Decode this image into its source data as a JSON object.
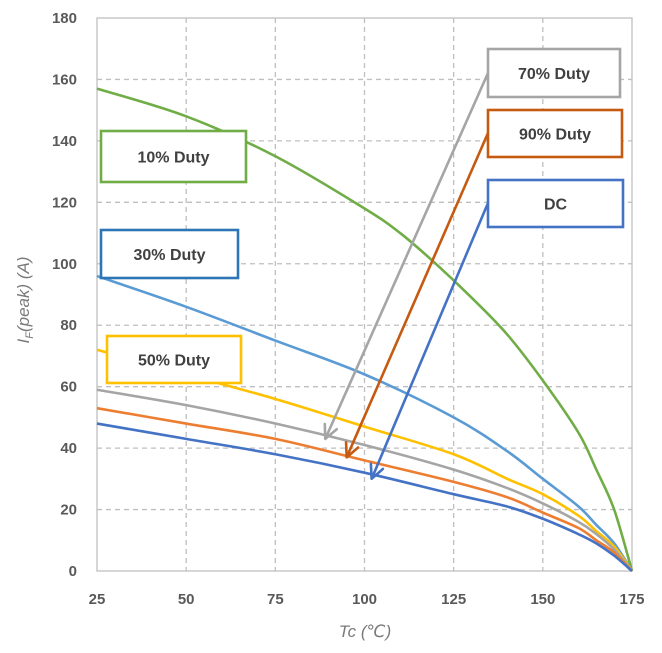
{
  "chart_data": {
    "type": "line",
    "xlabel": "Tc (℃)",
    "ylabel_main": "I",
    "ylabel_sub": "F",
    "ylabel_rest": "(peak) (A)",
    "xlim": [
      25,
      175
    ],
    "ylim": [
      0,
      180
    ],
    "xticks": [
      "25",
      "50",
      "75",
      "100",
      "125",
      "150",
      "175"
    ],
    "yticks": [
      "0",
      "20",
      "40",
      "60",
      "80",
      "100",
      "120",
      "140",
      "160",
      "180"
    ],
    "grid": true,
    "series": [
      {
        "name": "10% Duty",
        "color": "#70ad47",
        "x": [
          25,
          50,
          75,
          100,
          110,
          120,
          130,
          140,
          150,
          160,
          165,
          170,
          175
        ],
        "y": [
          157,
          148,
          135,
          118,
          110,
          100,
          89,
          77,
          62,
          45,
          33,
          20,
          0
        ]
      },
      {
        "name": "30% Duty",
        "color": "#5b9bd5",
        "x": [
          25,
          50,
          75,
          100,
          125,
          140,
          150,
          160,
          165,
          170,
          175
        ],
        "y": [
          96,
          86,
          75,
          64,
          50,
          39,
          30,
          21,
          15,
          9,
          0
        ]
      },
      {
        "name": "50% Duty",
        "color": "#ffc000",
        "x": [
          25,
          50,
          75,
          100,
          125,
          140,
          150,
          160,
          165,
          170,
          175
        ],
        "y": [
          72,
          64,
          56,
          47,
          38,
          30,
          25,
          18,
          13,
          8,
          0
        ]
      },
      {
        "name": "70% Duty",
        "color": "#a5a5a5",
        "x": [
          25,
          50,
          75,
          100,
          125,
          140,
          150,
          160,
          165,
          170,
          175
        ],
        "y": [
          59,
          54,
          48,
          41,
          33,
          27,
          22,
          16,
          12,
          7,
          0
        ]
      },
      {
        "name": "90% Duty",
        "color": "#ed7d31",
        "x": [
          25,
          50,
          75,
          100,
          125,
          140,
          150,
          160,
          165,
          170,
          175
        ],
        "y": [
          53,
          48,
          43,
          36,
          29,
          24,
          19,
          14,
          10,
          6,
          0
        ]
      },
      {
        "name": "DC",
        "color": "#4472c4",
        "x": [
          25,
          50,
          75,
          100,
          125,
          140,
          150,
          160,
          165,
          170,
          175
        ],
        "y": [
          48,
          43,
          38,
          32,
          25,
          21,
          17,
          12,
          9,
          5,
          0
        ]
      }
    ],
    "labels": [
      {
        "text": "10% Duty",
        "color": "#70ad47",
        "position": "left"
      },
      {
        "text": "30% Duty",
        "color": "#2e75b6",
        "position": "left"
      },
      {
        "text": "50% Duty",
        "color": "#ffc000",
        "position": "left"
      },
      {
        "text": "70% Duty",
        "color": "#a5a5a5",
        "position": "top-right"
      },
      {
        "text": "90% Duty",
        "color": "#c55a11",
        "position": "right"
      },
      {
        "text": "DC",
        "color": "#4472c4",
        "position": "right"
      }
    ],
    "arrows": [
      {
        "label": "70% Duty",
        "color": "#a5a5a5",
        "to": [
          89,
          43
        ]
      },
      {
        "label": "90% Duty",
        "color": "#c55a11",
        "to": [
          95,
          37
        ]
      },
      {
        "label": "DC",
        "color": "#4472c4",
        "to": [
          102,
          30
        ]
      }
    ]
  }
}
